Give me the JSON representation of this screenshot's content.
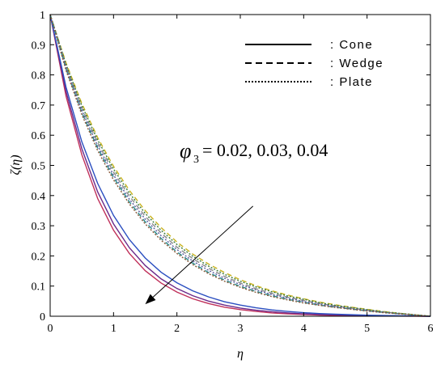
{
  "chart_data": {
    "type": "line",
    "title": "",
    "xlabel": "η",
    "ylabel": "ζ(η)",
    "xlim": [
      0,
      6
    ],
    "ylim": [
      0,
      1
    ],
    "xticks": [
      "0",
      "1",
      "2",
      "3",
      "4",
      "5",
      "6"
    ],
    "yticks": [
      "0",
      "0.1",
      "0.2",
      "0.3",
      "0.4",
      "0.5",
      "0.6",
      "0.7",
      "0.8",
      "0.9",
      "1"
    ],
    "grid": false,
    "legend": {
      "placement": "top-right",
      "entries": [
        {
          "style": "solid",
          "label": ": Cone"
        },
        {
          "style": "dashed",
          "label": ": Wedge"
        },
        {
          "style": "dotted",
          "label": ": Plate"
        }
      ]
    },
    "annotation": {
      "symbol": "φ",
      "subscript": "3",
      "text": "=  0.02, 0.03, 0.04",
      "arrow": {
        "from": [
          3.2,
          0.365
        ],
        "to": [
          1.5,
          0.04
        ]
      }
    },
    "x": [
      0,
      0.25,
      0.5,
      0.75,
      1,
      1.25,
      1.5,
      1.75,
      2,
      2.25,
      2.5,
      2.75,
      3,
      3.25,
      3.5,
      3.75,
      4,
      4.25,
      4.5,
      4.75,
      5,
      5.25,
      5.5,
      5.75,
      6
    ],
    "series": [
      {
        "style": "solid",
        "color": "#c0305a",
        "values": [
          1,
          0.73,
          0.535,
          0.39,
          0.285,
          0.208,
          0.151,
          0.11,
          0.08,
          0.058,
          0.042,
          0.03,
          0.022,
          0.016,
          0.011,
          0.008,
          0.006,
          0.004,
          0.003,
          0.002,
          0.0015,
          0.001,
          0.0006,
          0.0003,
          0
        ]
      },
      {
        "style": "solid",
        "color": "#6a2a8a",
        "values": [
          1,
          0.745,
          0.555,
          0.412,
          0.306,
          0.227,
          0.168,
          0.124,
          0.092,
          0.068,
          0.05,
          0.037,
          0.027,
          0.02,
          0.015,
          0.011,
          0.008,
          0.006,
          0.0044,
          0.0032,
          0.0023,
          0.0016,
          0.001,
          0.0005,
          0
        ]
      },
      {
        "style": "solid",
        "color": "#2a4ec0",
        "values": [
          1,
          0.76,
          0.578,
          0.44,
          0.334,
          0.254,
          0.193,
          0.146,
          0.111,
          0.084,
          0.064,
          0.048,
          0.037,
          0.028,
          0.021,
          0.016,
          0.012,
          0.009,
          0.0068,
          0.005,
          0.0036,
          0.0025,
          0.0016,
          0.0008,
          0
        ]
      },
      {
        "style": "dashed",
        "color": "#c9b21e",
        "values": [
          1,
          0.84,
          0.705,
          0.592,
          0.497,
          0.417,
          0.35,
          0.294,
          0.246,
          0.206,
          0.173,
          0.145,
          0.121,
          0.101,
          0.084,
          0.07,
          0.058,
          0.047,
          0.038,
          0.03,
          0.023,
          0.016,
          0.01,
          0.005,
          0
        ]
      },
      {
        "style": "dashed",
        "color": "#8a8a8a",
        "values": [
          1,
          0.83,
          0.69,
          0.575,
          0.478,
          0.398,
          0.331,
          0.276,
          0.229,
          0.191,
          0.159,
          0.132,
          0.11,
          0.091,
          0.076,
          0.063,
          0.052,
          0.042,
          0.034,
          0.027,
          0.02,
          0.014,
          0.009,
          0.004,
          0
        ]
      },
      {
        "style": "dashed",
        "color": "#2a8a8a",
        "values": [
          1,
          0.82,
          0.675,
          0.557,
          0.46,
          0.379,
          0.313,
          0.258,
          0.213,
          0.176,
          0.145,
          0.12,
          0.099,
          0.082,
          0.068,
          0.056,
          0.046,
          0.037,
          0.03,
          0.024,
          0.018,
          0.013,
          0.008,
          0.004,
          0
        ]
      },
      {
        "style": "dotted",
        "color": "#3a7a3a",
        "values": [
          1,
          0.835,
          0.698,
          0.584,
          0.488,
          0.408,
          0.341,
          0.285,
          0.238,
          0.199,
          0.166,
          0.139,
          0.116,
          0.097,
          0.081,
          0.067,
          0.056,
          0.045,
          0.036,
          0.029,
          0.022,
          0.015,
          0.01,
          0.005,
          0
        ]
      },
      {
        "style": "dotted",
        "color": "#5a5aa0",
        "values": [
          1,
          0.825,
          0.682,
          0.565,
          0.468,
          0.388,
          0.322,
          0.267,
          0.221,
          0.183,
          0.152,
          0.126,
          0.105,
          0.087,
          0.072,
          0.06,
          0.049,
          0.04,
          0.032,
          0.025,
          0.019,
          0.013,
          0.008,
          0.004,
          0
        ]
      },
      {
        "style": "dotted",
        "color": "#8a5a3a",
        "values": [
          1,
          0.815,
          0.668,
          0.549,
          0.452,
          0.372,
          0.306,
          0.252,
          0.208,
          0.171,
          0.141,
          0.116,
          0.096,
          0.079,
          0.065,
          0.054,
          0.044,
          0.036,
          0.029,
          0.023,
          0.017,
          0.012,
          0.008,
          0.004,
          0
        ]
      }
    ]
  }
}
